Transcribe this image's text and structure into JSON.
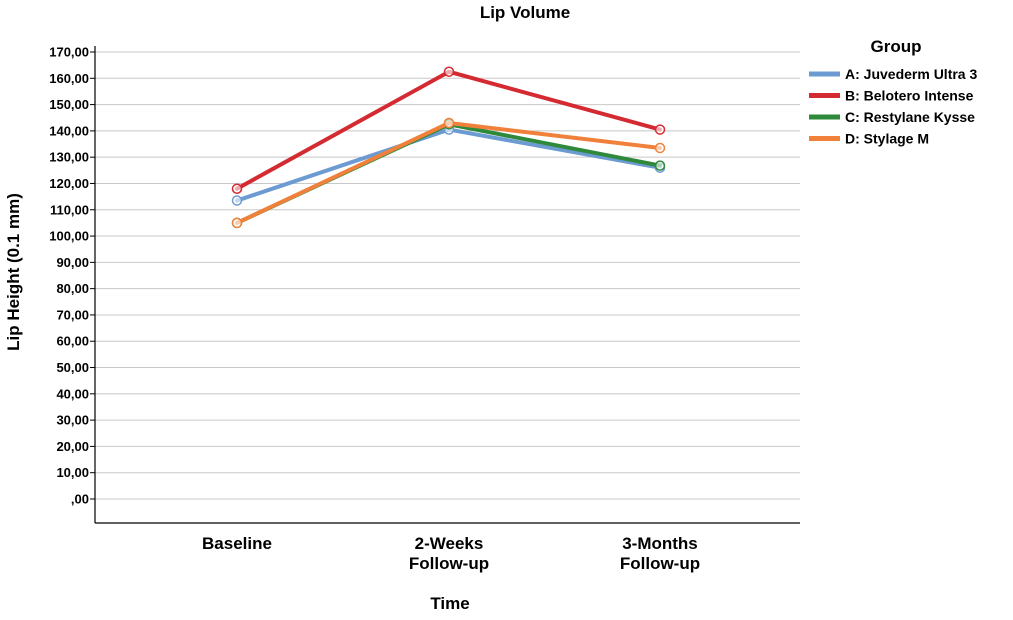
{
  "chart_data": {
    "type": "line",
    "title": "Lip Volume",
    "xlabel": "Time",
    "ylabel": "Lip Height (0.1 mm)",
    "categories": [
      [
        "Baseline"
      ],
      [
        "2-Weeks",
        "Follow-up"
      ],
      [
        "3-Months",
        "Follow-up"
      ]
    ],
    "ylim": [
      0,
      170
    ],
    "yticks": [
      0,
      10,
      20,
      30,
      40,
      50,
      60,
      70,
      80,
      90,
      100,
      110,
      120,
      130,
      140,
      150,
      160,
      170
    ],
    "ytick_labels": [
      ",00",
      "10,00",
      "20,00",
      "30,00",
      "40,00",
      "50,00",
      "60,00",
      "70,00",
      "80,00",
      "90,00",
      "100,00",
      "110,00",
      "120,00",
      "130,00",
      "140,00",
      "150,00",
      "160,00",
      "170,00"
    ],
    "grid": true,
    "legend_title": "Group",
    "legend_position": "right",
    "series": [
      {
        "name": "A: Juvederm Ultra 3",
        "color": "#6b9bd1",
        "values": [
          113.5,
          140.5,
          126.0
        ]
      },
      {
        "name": "B: Belotero Intense",
        "color": "#d42a32",
        "values": [
          118.0,
          162.5,
          140.5
        ]
      },
      {
        "name": "C: Restylane Kysse",
        "color": "#2e8a3a",
        "values": [
          105.0,
          142.5,
          126.8
        ]
      },
      {
        "name": "D: Stylage M",
        "color": "#f0803a",
        "values": [
          105.0,
          143.0,
          133.5
        ]
      }
    ]
  }
}
